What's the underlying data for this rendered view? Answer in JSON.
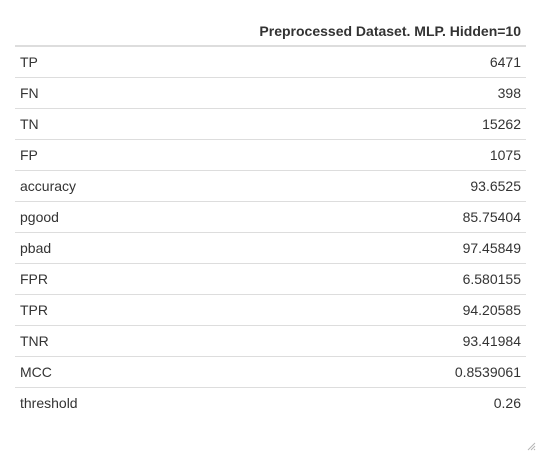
{
  "table": {
    "header_label": "",
    "header_value": "Preprocessed Dataset. MLP. Hidden=10",
    "rows": [
      {
        "name": "TP",
        "value": "6471"
      },
      {
        "name": "FN",
        "value": "398"
      },
      {
        "name": "TN",
        "value": "15262"
      },
      {
        "name": "FP",
        "value": "1075"
      },
      {
        "name": "accuracy",
        "value": "93.6525"
      },
      {
        "name": "pgood",
        "value": "85.75404"
      },
      {
        "name": "pbad",
        "value": "97.45849"
      },
      {
        "name": "FPR",
        "value": "6.580155"
      },
      {
        "name": "TPR",
        "value": "94.20585"
      },
      {
        "name": "TNR",
        "value": "93.41984"
      },
      {
        "name": "MCC",
        "value": "0.8539061"
      },
      {
        "name": "threshold",
        "value": "0.26"
      }
    ]
  },
  "icons": {
    "resize": "resize-grip-icon"
  }
}
